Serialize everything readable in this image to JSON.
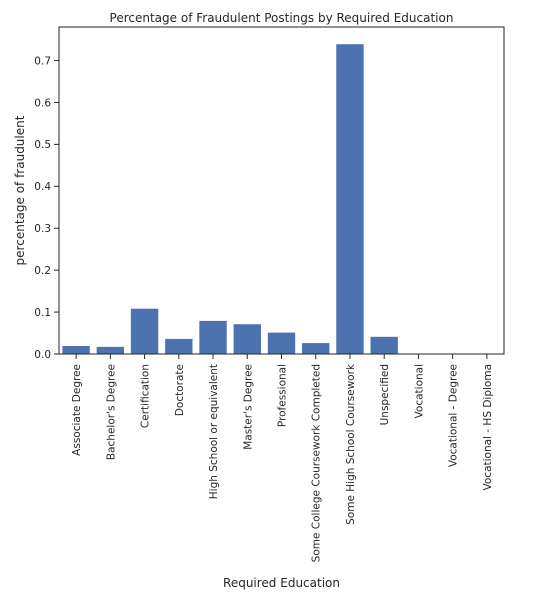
{
  "chart_data": {
    "type": "bar",
    "title": "Percentage of Fraudulent Postings by Required Education",
    "xlabel": "Required Education",
    "ylabel": "percentage of fraudulent",
    "categories": [
      "Associate Degree",
      "Bachelor's Degree",
      "Certification",
      "Doctorate",
      "High School or equivalent",
      "Master's Degree",
      "Professional",
      "Some College Coursework Completed",
      "Some High School Coursework",
      "Unspecified",
      "Vocational",
      "Vocational - Degree",
      "Vocational - HS Diploma"
    ],
    "values": [
      0.019,
      0.017,
      0.108,
      0.036,
      0.079,
      0.071,
      0.051,
      0.026,
      0.739,
      0.041,
      0.0,
      0.0,
      0.0
    ],
    "ylim": [
      0,
      0.78
    ],
    "yticks": [
      0.0,
      0.1,
      0.2,
      0.3,
      0.4,
      0.5,
      0.6,
      0.7
    ],
    "ytick_labels": [
      "0.0",
      "0.1",
      "0.2",
      "0.3",
      "0.4",
      "0.5",
      "0.6",
      "0.7"
    ],
    "grid": false,
    "legend": "none",
    "bar_color": "#4c72b0",
    "axis_color": "#262626"
  }
}
